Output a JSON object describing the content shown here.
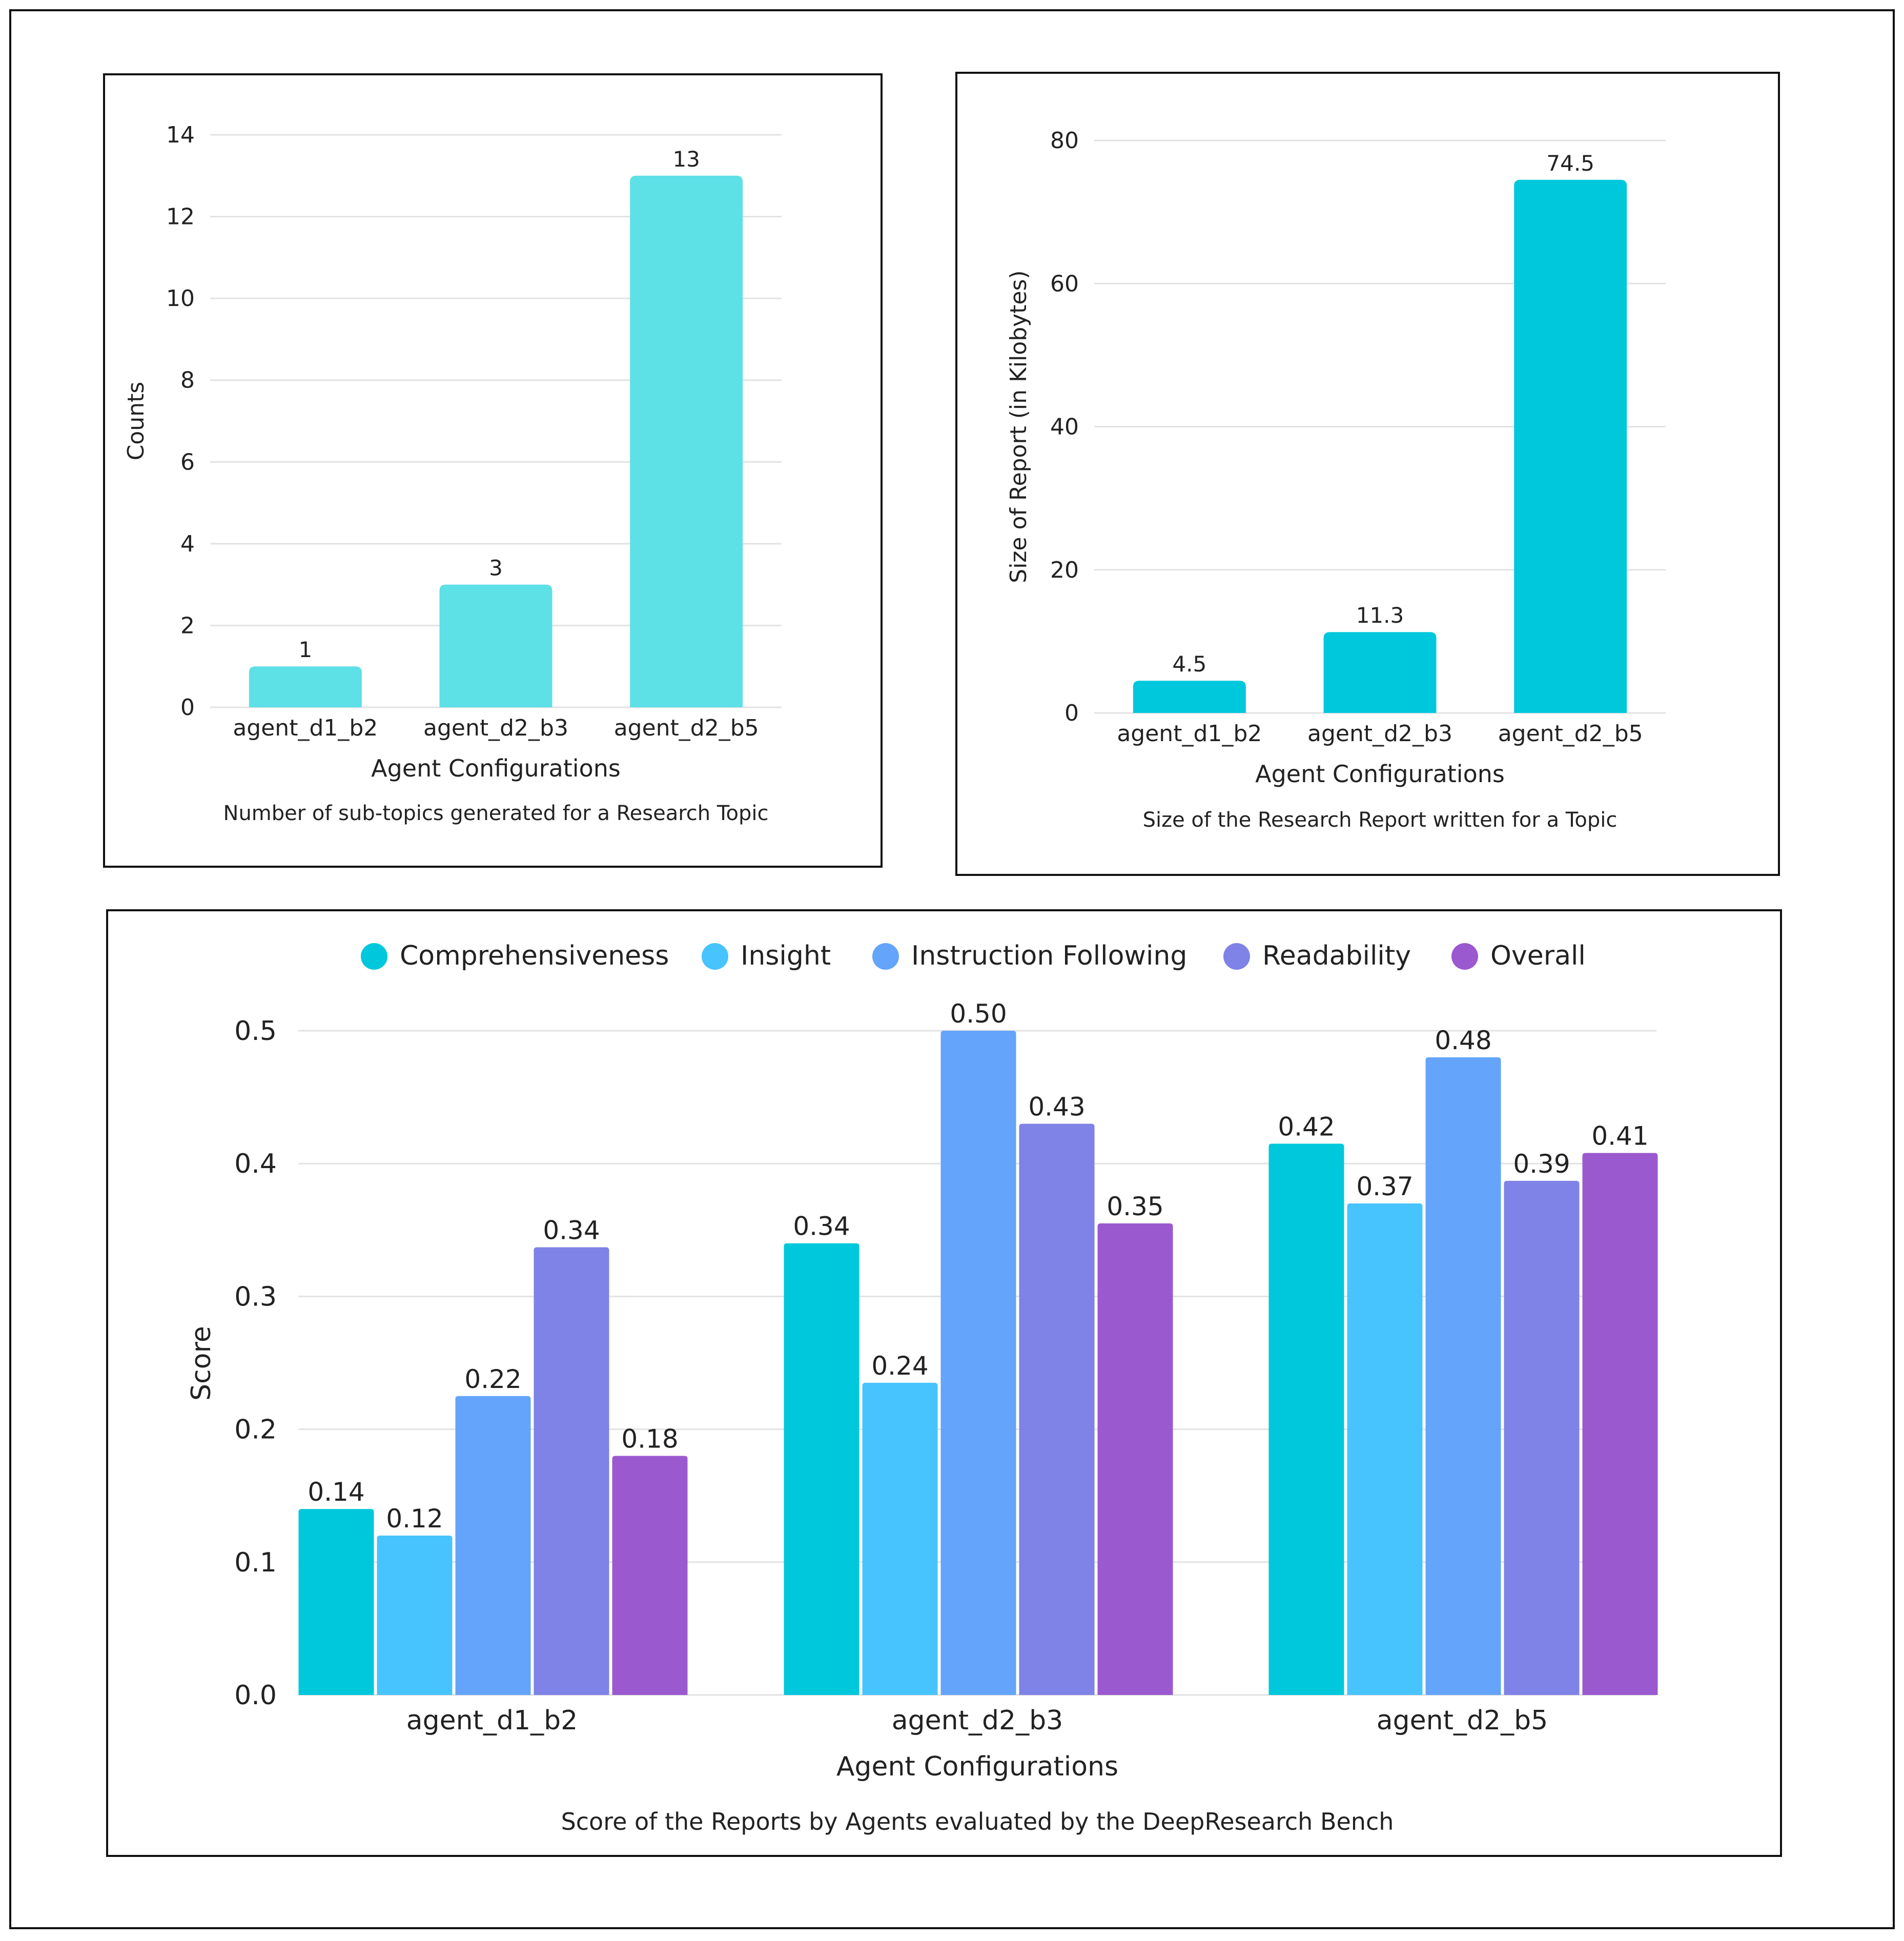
{
  "colors": {
    "bar_top_left": "#5de0e6",
    "bar_top_right": "#00c8dc",
    "grid": "#e2e2e2",
    "axis_text": "#222222",
    "frame": "#111111"
  },
  "chart_data": [
    {
      "type": "bar",
      "categories": [
        "agent_d1_b2",
        "agent_d2_b3",
        "agent_d2_b5"
      ],
      "values": [
        1,
        3,
        13
      ],
      "data_labels": [
        "1",
        "3",
        "13"
      ],
      "ylabel": "Counts",
      "xlabel": "Agent Configurations",
      "caption": "Number of sub-topics generated for a Research Topic",
      "ylim": [
        0,
        14
      ],
      "yticks": [
        0,
        2,
        4,
        6,
        8,
        10,
        12,
        14
      ],
      "grid": true
    },
    {
      "type": "bar",
      "categories": [
        "agent_d1_b2",
        "agent_d2_b3",
        "agent_d2_b5"
      ],
      "values": [
        4.5,
        11.3,
        74.5
      ],
      "data_labels": [
        "4.5",
        "11.3",
        "74.5"
      ],
      "ylabel": "Size of Report (in Kilobytes)",
      "xlabel": "Agent Configurations",
      "caption": "Size of the Research Report written for a Topic",
      "ylim": [
        0,
        80
      ],
      "yticks": [
        0,
        20,
        40,
        60,
        80
      ],
      "grid": true
    },
    {
      "type": "bar",
      "categories": [
        "agent_d1_b2",
        "agent_d2_b3",
        "agent_d2_b5"
      ],
      "series": [
        {
          "name": "Comprehensiveness",
          "color": "#00c8dc",
          "values": [
            0.14,
            0.34,
            0.415
          ],
          "labels": [
            "0.14",
            "0.34",
            "0.42"
          ]
        },
        {
          "name": "Insight",
          "color": "#47c3fd",
          "values": [
            0.12,
            0.235,
            0.37
          ],
          "labels": [
            "0.12",
            "0.24",
            "0.37"
          ]
        },
        {
          "name": "Instruction Following",
          "color": "#64a4fa",
          "values": [
            0.225,
            0.5,
            0.48
          ],
          "labels": [
            "0.22",
            "0.50",
            "0.48"
          ]
        },
        {
          "name": "Readability",
          "color": "#7f82e6",
          "values": [
            0.337,
            0.43,
            0.387
          ],
          "labels": [
            "0.34",
            "0.43",
            "0.39"
          ]
        },
        {
          "name": "Overall",
          "color": "#9b59cf",
          "values": [
            0.18,
            0.355,
            0.408
          ],
          "labels": [
            "0.18",
            "0.35",
            "0.41"
          ]
        }
      ],
      "ylabel": "Score",
      "xlabel": "Agent Configurations",
      "caption": "Score of the Reports by Agents evaluated by the DeepResearch Bench",
      "ylim": [
        0,
        0.5
      ],
      "yticks": [
        0.0,
        0.1,
        0.2,
        0.3,
        0.4,
        0.5
      ],
      "ytick_labels": [
        "0.0",
        "0.1",
        "0.2",
        "0.3",
        "0.4",
        "0.5"
      ],
      "legend": "top",
      "grid": true
    }
  ]
}
